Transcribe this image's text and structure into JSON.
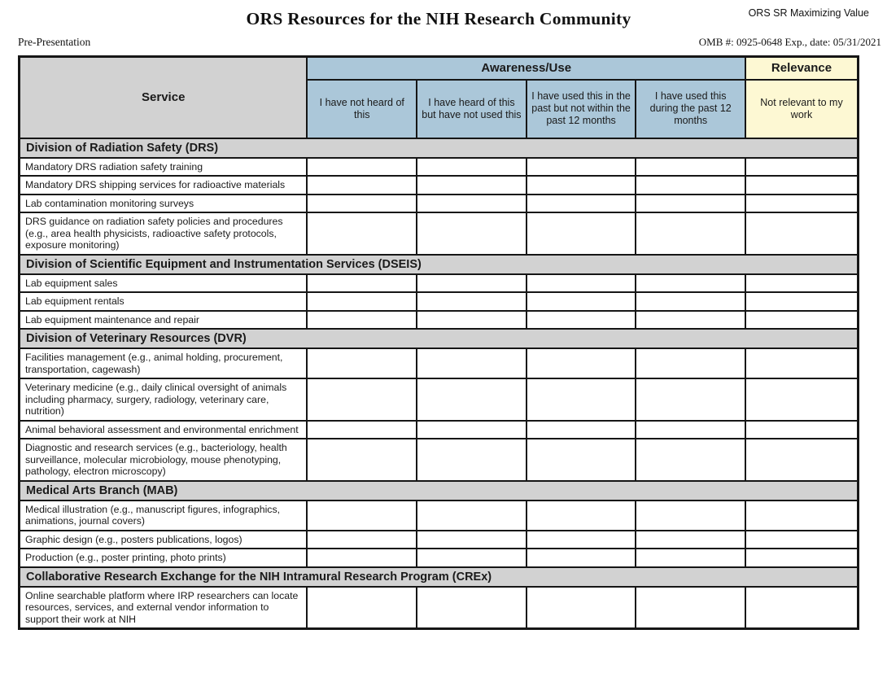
{
  "header": {
    "corner_label": "ORS SR Maximizing Value",
    "title": "ORS Resources for the NIH Research Community",
    "stage_label": "Pre-Presentation",
    "omb_label": "OMB #: 0925-0648 Exp., date: 05/31/2021"
  },
  "table": {
    "service_header": "Service",
    "groups": {
      "awareness": {
        "label": "Awareness/Use",
        "span": 4
      },
      "relevance": {
        "label": "Relevance",
        "span": 1
      }
    },
    "answer_columns": [
      {
        "label": "I have not heard of this",
        "group": "awareness"
      },
      {
        "label": "I have heard of this but have not used this",
        "group": "awareness"
      },
      {
        "label": "I have used this in the past but not within the past 12 months",
        "group": "awareness"
      },
      {
        "label": "I have used this during the past 12 months",
        "group": "awareness"
      },
      {
        "label": "Not relevant to my work",
        "group": "relevance"
      }
    ],
    "sections": [
      {
        "title": "Division of Radiation Safety (DRS)",
        "rows": [
          "Mandatory DRS radiation safety training",
          "Mandatory DRS shipping services for radioactive materials",
          "Lab contamination monitoring surveys",
          "DRS guidance on radiation safety policies and procedures (e.g., area health physicists, radioactive safety protocols, exposure monitoring)"
        ]
      },
      {
        "title": "Division of Scientific Equipment and Instrumentation Services (DSEIS)",
        "rows": [
          "Lab equipment sales",
          "Lab equipment rentals",
          "Lab equipment maintenance and repair"
        ]
      },
      {
        "title": "Division of Veterinary Resources (DVR)",
        "rows": [
          "Facilities management (e.g., animal holding, procurement, transportation, cagewash)",
          "Veterinary medicine (e.g., daily clinical oversight of animals including pharmacy, surgery, radiology, veterinary care, nutrition)",
          "Animal behavioral assessment and environmental enrichment",
          "Diagnostic and research services (e.g., bacteriology, health surveillance, molecular microbiology, mouse phenotyping, pathology, electron microscopy)"
        ]
      },
      {
        "title": "Medical Arts Branch (MAB)",
        "rows": [
          "Medical illustration (e.g., manuscript figures, infographics, animations, journal covers)",
          "Graphic design (e.g., posters publications, logos)",
          "Production (e.g., poster printing, photo prints)"
        ]
      },
      {
        "title": "Collaborative Research Exchange for the NIH Intramural Research Program (CREx)",
        "rows": [
          "Online searchable platform where IRP researchers can locate resources, services, and external vendor information to support their work at NIH"
        ]
      }
    ]
  },
  "colors": {
    "awareness_bg": "#abc7d9",
    "relevance_bg": "#fdf8d3",
    "section_bg": "#d2d2d2",
    "border": "#161616"
  }
}
